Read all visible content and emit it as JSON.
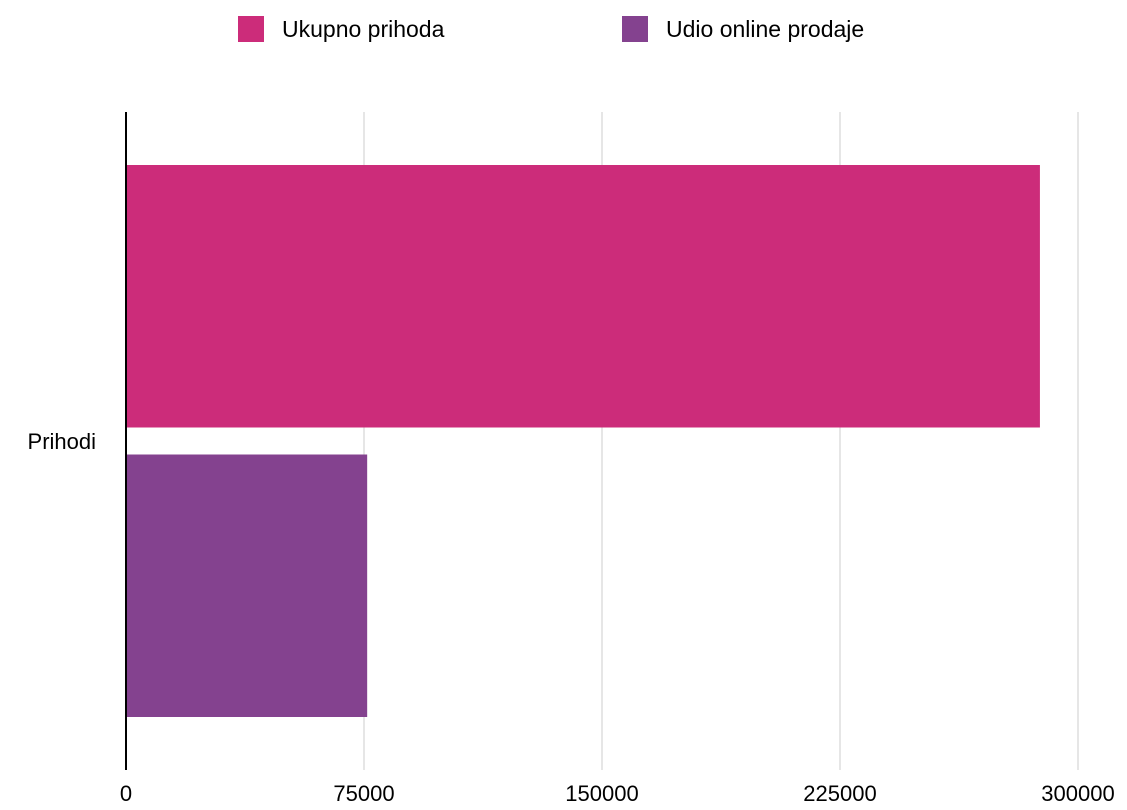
{
  "chart_data": {
    "type": "bar",
    "orientation": "horizontal",
    "categories": [
      "Prihodi"
    ],
    "series": [
      {
        "name": "Ukupno prihoda",
        "values": [
          288000
        ],
        "color": "#CC2C7A"
      },
      {
        "name": "Udio online prodaje",
        "values": [
          76000
        ],
        "color": "#84428F"
      }
    ],
    "xlim": [
      0,
      300000
    ],
    "x_ticks": [
      "0",
      "75000",
      "150000",
      "225000",
      "300000"
    ],
    "grid": "vertical",
    "legend_position": "top"
  }
}
